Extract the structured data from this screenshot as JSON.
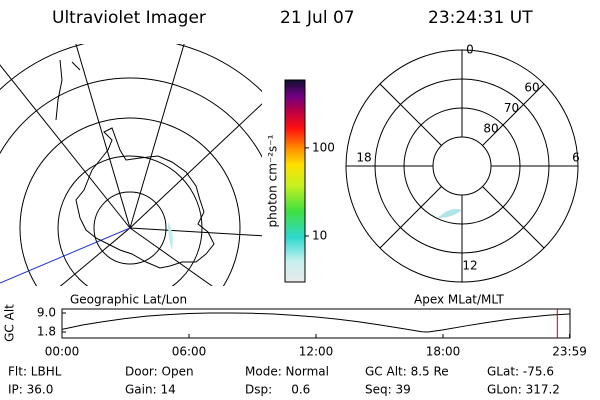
{
  "header": {
    "title": "Ultraviolet Imager",
    "date": "21 Jul 07",
    "time": "23:24:31 UT"
  },
  "left_panel": {
    "label": "Geographic Lat/Lon"
  },
  "right_panel": {
    "label": "Apex MLat/MLT",
    "mlt_labels": [
      12,
      6,
      0,
      18
    ],
    "mlat_labels": [
      60,
      70,
      80
    ]
  },
  "colorbar": {
    "label": "photon cm⁻²s⁻¹",
    "lim": [
      3,
      590
    ],
    "ticks": [
      10,
      100
    ],
    "log": true
  },
  "chart_data": {
    "type": "line",
    "ylabel": "GC Alt",
    "x": [
      0,
      1,
      2,
      3,
      4,
      5,
      6,
      7,
      8,
      9,
      10,
      11,
      12,
      13,
      14,
      15,
      16,
      17,
      17.3,
      18,
      19,
      20,
      21,
      22,
      23,
      23.98
    ],
    "series": [
      {
        "color": "#000000",
        "values": [
          2.8,
          4.5,
          5.8,
          6.9,
          7.8,
          8.4,
          8.8,
          9.0,
          9.0,
          8.9,
          8.6,
          8.1,
          7.5,
          6.7,
          5.7,
          4.5,
          3.2,
          1.9,
          1.8,
          2.6,
          4.0,
          5.3,
          6.5,
          7.4,
          8.2,
          8.6
        ]
      }
    ],
    "xlim": [
      0,
      24
    ],
    "xticks": [
      {
        "value": 0,
        "label": "00:00"
      },
      {
        "value": 6,
        "label": "06:00"
      },
      {
        "value": 12,
        "label": "12:00"
      },
      {
        "value": 18,
        "label": "18:00"
      },
      {
        "value": 23.98,
        "label": "23:59"
      }
    ],
    "ylim": [
      1.8,
      9.0
    ],
    "yticks": [
      1.8,
      {
        "value": 9,
        "label": "9.0"
      }
    ],
    "marker_x": 23.4,
    "marker_color": "#cc0000"
  },
  "status": [
    [
      "Flt: LBHL",
      "Door: Open",
      "Mode: Normal",
      "GC Alt: 8.5 Re",
      "GLat: -75.6"
    ],
    [
      "IP: 36.0",
      "Gain: 14",
      "Dsp:     0.6",
      "Seq: 39",
      "GLon: 317.2"
    ]
  ]
}
